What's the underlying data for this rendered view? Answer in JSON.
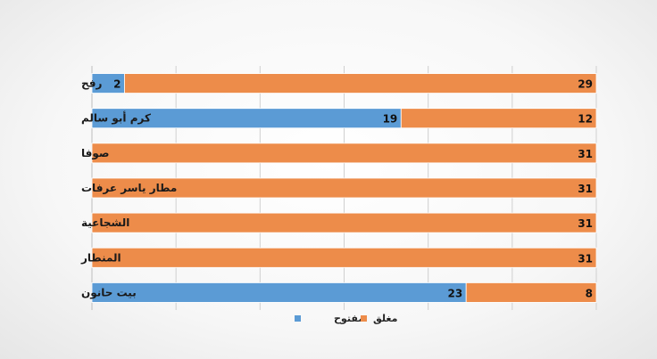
{
  "chart_data": {
    "type": "bar",
    "orientation": "horizontal",
    "stacked": true,
    "categories": [
      "رفح",
      "كرم أبو سالم",
      "صوفا",
      "مطار ياسر عرفات",
      "الشجاعية",
      "المنطار",
      "بيت حانون"
    ],
    "series": [
      {
        "name": "مفتوح",
        "color": "#5b9bd5",
        "values": [
          2,
          19,
          0,
          0,
          0,
          0,
          23
        ]
      },
      {
        "name": "مغلق",
        "color": "#ed8c4a",
        "values": [
          29,
          12,
          31,
          31,
          31,
          31,
          8
        ]
      }
    ],
    "xlim": [
      0,
      31
    ],
    "gridlines": true,
    "legend_position": "bottom"
  }
}
